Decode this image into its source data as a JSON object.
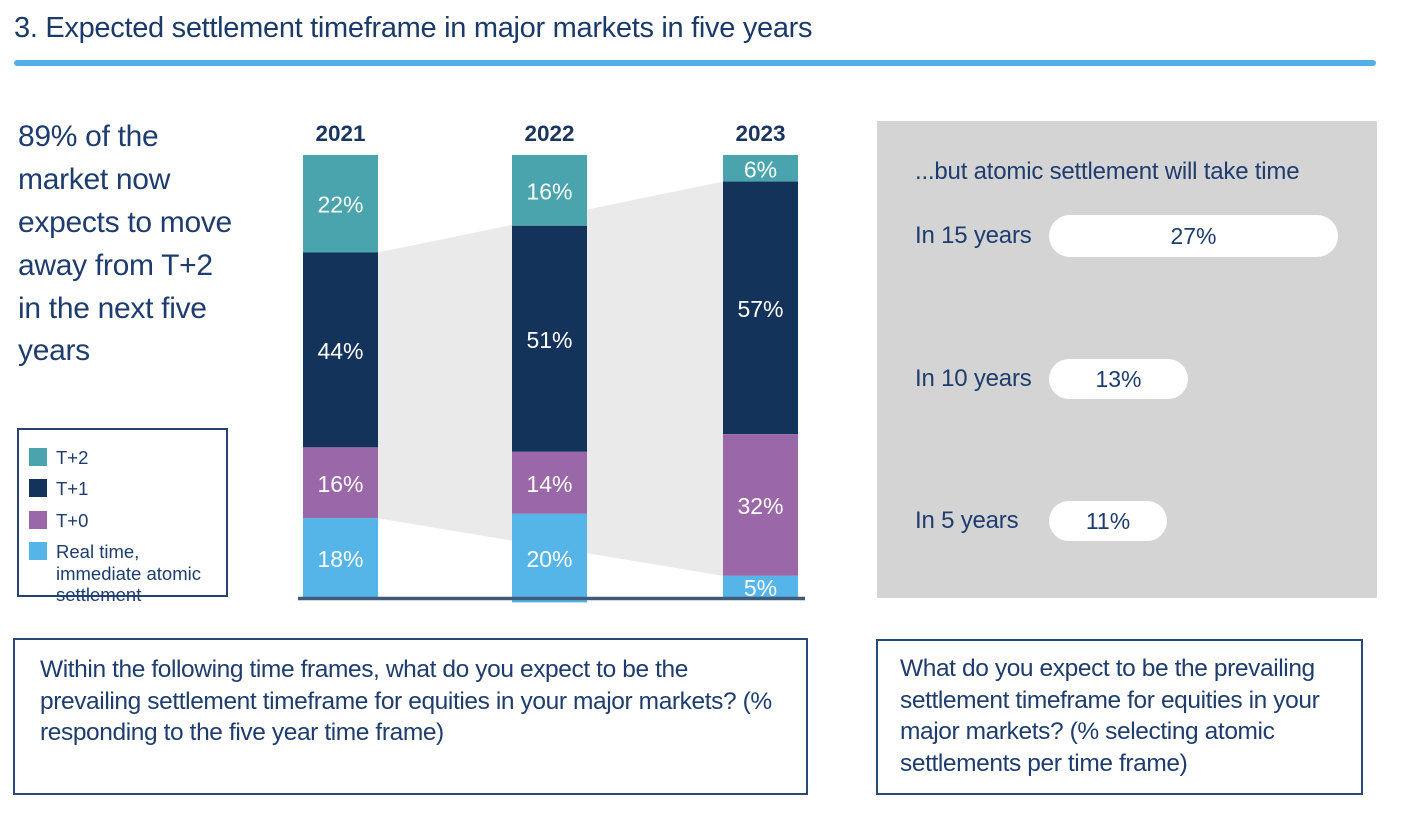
{
  "header": {
    "title": "3. Expected settlement timeframe in major markets in five years"
  },
  "highlight": {
    "text": "89% of the market now expects to move away from T+2 in the next five years"
  },
  "legend": {
    "items": [
      {
        "label": "T+2",
        "color": "#4aa4ae"
      },
      {
        "label": "T+1",
        "color": "#13335b"
      },
      {
        "label": "T+0",
        "color": "#9a67a8"
      },
      {
        "label": "Real time, immediate atomic settlement",
        "color": "#55b5e8"
      }
    ]
  },
  "chart_data": [
    {
      "type": "bar",
      "subtype": "stacked-100-percent-vertical",
      "categories": [
        "2021",
        "2022",
        "2023"
      ],
      "series": [
        {
          "name": "T+2",
          "color": "#4aa4ae",
          "values": [
            22,
            16,
            6
          ]
        },
        {
          "name": "T+1",
          "color": "#13335b",
          "values": [
            44,
            51,
            57
          ]
        },
        {
          "name": "T+0",
          "color": "#9a67a8",
          "values": [
            16,
            14,
            32
          ]
        },
        {
          "name": "Real time, immediate atomic settlement",
          "color": "#55b5e8",
          "values": [
            18,
            20,
            5
          ]
        }
      ],
      "value_suffix": "%",
      "ylim": [
        0,
        100
      ],
      "grid": false,
      "legend_position": "left",
      "data_labels": "inside-white",
      "flow_band": {
        "enabled": true,
        "color": "#eaeaea"
      }
    },
    {
      "type": "bar",
      "subtype": "horizontal-pills",
      "title": "...but atomic settlement will take time",
      "categories": [
        "In 15 years",
        "In 10 years",
        "In 5 years"
      ],
      "values": [
        27,
        13,
        11
      ],
      "value_suffix": "%",
      "pill_labels": [
        "27%",
        "13%",
        "11%"
      ]
    }
  ],
  "questions": {
    "left": "Within the following time frames, what do you expect to be the prevailing settlement timeframe for equities in your major markets? (% responding to the five year time frame)",
    "right": "What do you expect to be the prevailing settlement timeframe for equities in your major markets? (% selecting atomic settlements per time frame)"
  },
  "colors": {
    "accent_rule": "#55aee4",
    "text_navy": "#1e3c6e",
    "year_label": "#1a3560",
    "baseline": "#3e5c7a",
    "panel_gray": "#d4d4d4",
    "flow_gray": "#eaeaea",
    "bar_label_text": "#ffffff"
  }
}
